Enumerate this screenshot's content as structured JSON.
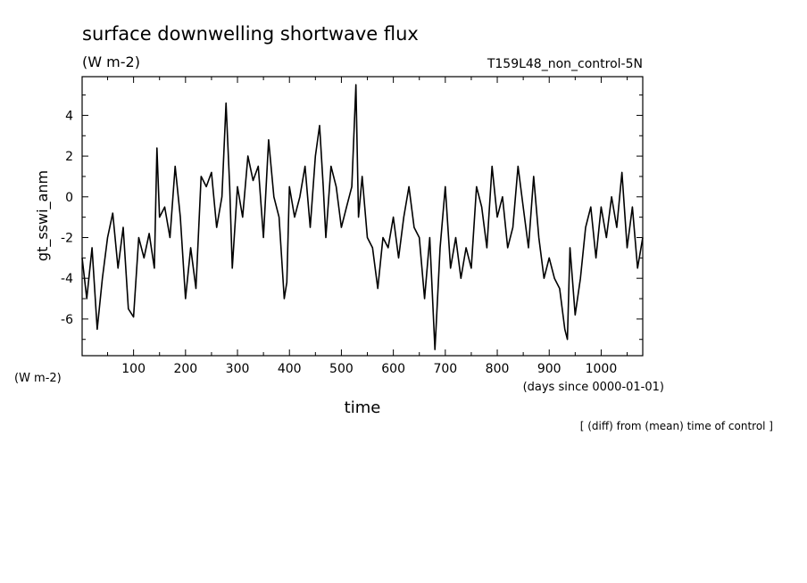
{
  "chart_data": {
    "type": "line",
    "title": "surface downwelling shortwave flux",
    "units": "(W m-2)",
    "units_lower": "(W m-2)",
    "experiment": "T159L48_non_control-5N",
    "ylabel": "gt_sswi_anm",
    "xlabel": "time",
    "xunits": "(days since 0000-01-01)",
    "footnote": "[ (diff) from (mean) time of control ]",
    "xlim": [
      1,
      1080
    ],
    "ylim": [
      -7.8,
      5.9
    ],
    "xticks": [
      100,
      200,
      300,
      400,
      500,
      600,
      700,
      800,
      900,
      1000
    ],
    "yticks": [
      -6,
      -4,
      -2,
      0,
      2,
      4
    ],
    "grid": false,
    "legend": "none",
    "line_color": "#000000",
    "series": [
      {
        "x": [
          1,
          10,
          20,
          30,
          40,
          50,
          60,
          70,
          80,
          90,
          100,
          110,
          120,
          130,
          140,
          145,
          150,
          160,
          170,
          180,
          190,
          200,
          210,
          220,
          230,
          240,
          250,
          260,
          270,
          278,
          285,
          290,
          300,
          310,
          320,
          330,
          340,
          350,
          360,
          370,
          380,
          390,
          395,
          400,
          410,
          420,
          430,
          440,
          450,
          458,
          465,
          470,
          480,
          490,
          500,
          510,
          520,
          528,
          533,
          540,
          550,
          560,
          570,
          580,
          590,
          600,
          610,
          620,
          630,
          640,
          650,
          660,
          670,
          680,
          682,
          690,
          700,
          710,
          720,
          730,
          740,
          750,
          760,
          770,
          780,
          790,
          800,
          810,
          820,
          830,
          840,
          850,
          860,
          870,
          880,
          890,
          900,
          910,
          920,
          930,
          935,
          940,
          950,
          960,
          970,
          980,
          990,
          1000,
          1010,
          1020,
          1030,
          1040,
          1050,
          1060,
          1070,
          1080
        ],
        "values": [
          -3.0,
          -5.0,
          -2.5,
          -6.5,
          -4.0,
          -2.0,
          -0.8,
          -3.5,
          -1.5,
          -5.5,
          -5.9,
          -2.0,
          -3.0,
          -1.8,
          -3.5,
          2.4,
          -1.0,
          -0.5,
          -2.0,
          1.5,
          -1.0,
          -5.0,
          -2.5,
          -4.5,
          1.0,
          0.5,
          1.2,
          -1.5,
          0.0,
          4.6,
          0.5,
          -3.5,
          0.5,
          -1.0,
          2.0,
          0.8,
          1.5,
          -2.0,
          2.8,
          0.0,
          -1.0,
          -5.0,
          -4.2,
          0.5,
          -1.0,
          0.0,
          1.5,
          -1.5,
          2.0,
          3.5,
          0.5,
          -2.0,
          1.5,
          0.5,
          -1.5,
          -0.5,
          0.5,
          5.5,
          -1.0,
          1.0,
          -2.0,
          -2.5,
          -4.5,
          -2.0,
          -2.5,
          -1.0,
          -3.0,
          -1.0,
          0.5,
          -1.5,
          -2.0,
          -5.0,
          -2.0,
          -7.5,
          -6.5,
          -2.5,
          0.5,
          -3.5,
          -2.0,
          -4.0,
          -2.5,
          -3.5,
          0.5,
          -0.5,
          -2.5,
          1.5,
          -1.0,
          0.0,
          -2.5,
          -1.5,
          1.5,
          -0.5,
          -2.5,
          1.0,
          -2.0,
          -4.0,
          -3.0,
          -4.0,
          -4.5,
          -6.5,
          -7.0,
          -2.5,
          -5.8,
          -4.0,
          -1.5,
          -0.5,
          -3.0,
          -0.5,
          -2.0,
          0.0,
          -1.5,
          1.2,
          -2.5,
          -0.5,
          -3.5,
          -2.0
        ]
      }
    ]
  }
}
